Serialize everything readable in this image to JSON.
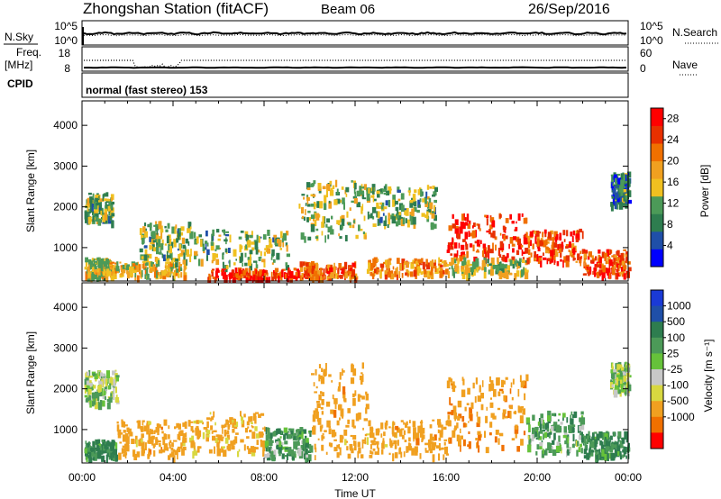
{
  "header": {
    "station": "Zhongshan Station (fitACF)",
    "beam": "Beam 06",
    "date": "26/Sep/2016"
  },
  "noise_panel": {
    "left_label": "N.Sky",
    "right_label": "N.Search",
    "left_ticks": [
      "10^5",
      "10^0"
    ],
    "right_ticks": [
      "10^5",
      "10^0"
    ]
  },
  "freq_panel": {
    "left_label_top": "Freq.",
    "left_label_bottom": "[MHz]",
    "right_label": "Nave",
    "left_ticks": [
      "18",
      "8"
    ],
    "right_ticks": [
      "60",
      "0"
    ]
  },
  "cpid_panel": {
    "label": "CPID",
    "text": "normal (fast stereo) 153"
  },
  "colors": {
    "power_scale": [
      "#0000ff",
      "#1f4fa8",
      "#2e7d4f",
      "#4c9a58",
      "#f0c020",
      "#f0a020",
      "#f07000",
      "#e83000",
      "#ff0000"
    ],
    "velocity_scale": [
      "#1a3ad6",
      "#1f4fa8",
      "#2e7d4f",
      "#4c9a58",
      "#66c23a",
      "#c8c8c8",
      "#d8d840",
      "#f0a020",
      "#f07000",
      "#ff0000"
    ]
  },
  "chart_data": [
    {
      "id": "power",
      "type": "heatmap",
      "ylabel": "Slant Range [km]",
      "xlabel": "",
      "x_ticks": [
        "00:00",
        "04:00",
        "08:00",
        "12:00",
        "16:00",
        "20:00",
        "00:00"
      ],
      "y_ticks": [
        1000,
        2000,
        3000,
        4000
      ],
      "ylim": [
        180,
        4600
      ],
      "xlim_hours": [
        0,
        24
      ],
      "colorbar": {
        "label": "Power [dB]",
        "ticks": [
          4,
          8,
          12,
          16,
          20,
          24,
          28
        ],
        "range": [
          0,
          30
        ]
      },
      "data_regions": [
        {
          "t": [
            0.1,
            1.3
          ],
          "range": [
            1600,
            2300
          ],
          "level": 12
        },
        {
          "t": [
            0.1,
            1.3
          ],
          "range": [
            250,
            700
          ],
          "level": 16
        },
        {
          "t": [
            1.3,
            4.5
          ],
          "range": [
            250,
            600
          ],
          "level": 16
        },
        {
          "t": [
            2.5,
            5.0
          ],
          "range": [
            600,
            1600
          ],
          "level": 12
        },
        {
          "t": [
            5.0,
            9.0
          ],
          "range": [
            500,
            1400
          ],
          "level": 12
        },
        {
          "t": [
            5.5,
            9.5
          ],
          "range": [
            200,
            450
          ],
          "level": 26
        },
        {
          "t": [
            9.5,
            12.5
          ],
          "range": [
            1200,
            2600
          ],
          "level": 14
        },
        {
          "t": [
            9.5,
            12.0
          ],
          "range": [
            200,
            600
          ],
          "level": 22
        },
        {
          "t": [
            12.5,
            16.0
          ],
          "range": [
            300,
            700
          ],
          "level": 20
        },
        {
          "t": [
            12.5,
            15.5
          ],
          "range": [
            1500,
            2500
          ],
          "level": 12
        },
        {
          "t": [
            16.0,
            19.5
          ],
          "range": [
            700,
            1800
          ],
          "level": 26
        },
        {
          "t": [
            16.0,
            19.5
          ],
          "range": [
            300,
            700
          ],
          "level": 14
        },
        {
          "t": [
            19.5,
            22.0
          ],
          "range": [
            600,
            1400
          ],
          "level": 24
        },
        {
          "t": [
            22.0,
            24.0
          ],
          "range": [
            300,
            900
          ],
          "level": 24
        },
        {
          "t": [
            23.2,
            24.0
          ],
          "range": [
            2000,
            2800
          ],
          "level": 8
        }
      ]
    },
    {
      "id": "velocity",
      "type": "heatmap",
      "ylabel": "Slant Range [km]",
      "xlabel": "Time UT",
      "x_ticks": [
        "00:00",
        "04:00",
        "08:00",
        "12:00",
        "16:00",
        "20:00",
        "00:00"
      ],
      "y_ticks": [
        1000,
        2000,
        3000,
        4000
      ],
      "ylim": [
        180,
        4600
      ],
      "xlim_hours": [
        0,
        24
      ],
      "colorbar": {
        "label": "Velocity [m s⁻¹]",
        "ticks": [
          1000,
          500,
          100,
          25,
          -25,
          -100,
          -500,
          -1000
        ]
      },
      "data_regions": [
        {
          "t": [
            0.1,
            1.5
          ],
          "range": [
            1600,
            2400
          ],
          "level": 0
        },
        {
          "t": [
            0.1,
            1.5
          ],
          "range": [
            250,
            700
          ],
          "level": 150
        },
        {
          "t": [
            1.5,
            4.5
          ],
          "range": [
            300,
            1200
          ],
          "level": -300
        },
        {
          "t": [
            4.5,
            8.0
          ],
          "range": [
            400,
            1400
          ],
          "level": -200
        },
        {
          "t": [
            8.0,
            10.0
          ],
          "range": [
            300,
            1000
          ],
          "level": 80
        },
        {
          "t": [
            10.0,
            12.5
          ],
          "range": [
            300,
            2600
          ],
          "level": -300
        },
        {
          "t": [
            12.5,
            16.0
          ],
          "range": [
            300,
            1200
          ],
          "level": -300
        },
        {
          "t": [
            16.0,
            19.5
          ],
          "range": [
            500,
            2300
          ],
          "level": -400
        },
        {
          "t": [
            19.5,
            22.0
          ],
          "range": [
            400,
            1400
          ],
          "level": 60
        },
        {
          "t": [
            22.0,
            24.0
          ],
          "range": [
            300,
            900
          ],
          "level": 120
        },
        {
          "t": [
            23.2,
            24.0
          ],
          "range": [
            1900,
            2600
          ],
          "level": 0
        }
      ]
    }
  ]
}
